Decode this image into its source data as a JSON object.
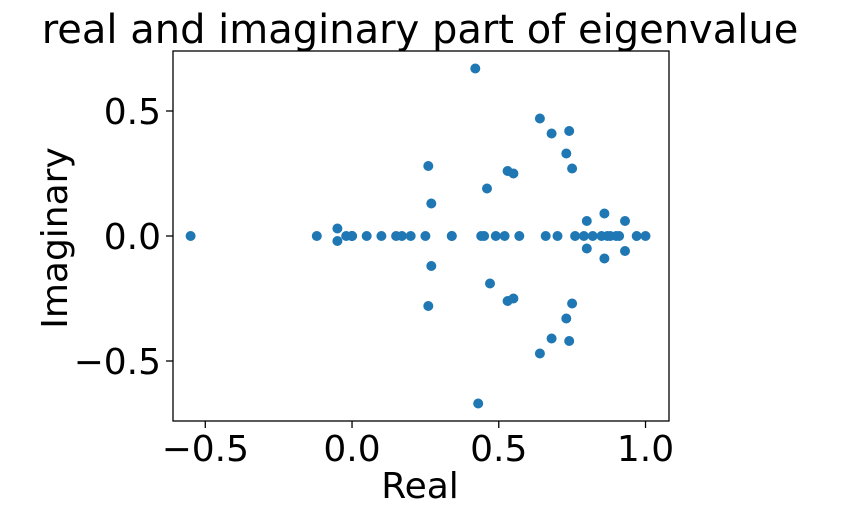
{
  "chart_data": {
    "type": "scatter",
    "title": "real and imaginary part of eigenvalue",
    "xlabel": "Real",
    "ylabel": "Imaginary",
    "xlim": [
      -0.61,
      1.08
    ],
    "ylim": [
      -0.74,
      0.74
    ],
    "xticks": [
      -0.5,
      0.0,
      0.5,
      1.0
    ],
    "xtick_labels": [
      "−0.5",
      "0.0",
      "0.5",
      "1.0"
    ],
    "yticks": [
      -0.5,
      0.0,
      0.5
    ],
    "ytick_labels": [
      "−0.5",
      "0.0",
      "0.5"
    ],
    "grid": false,
    "marker_color": "#1f77b4",
    "series": [
      {
        "x": [
          -0.55,
          -0.12,
          -0.05,
          -0.05,
          -0.02,
          0.0,
          0.0,
          0.0,
          0.05,
          0.1,
          0.15,
          0.17,
          0.2,
          0.25,
          0.26,
          0.26,
          0.27,
          0.27,
          0.34,
          0.34,
          0.42,
          0.43,
          0.44,
          0.45,
          0.46,
          0.47,
          0.49,
          0.52,
          0.53,
          0.53,
          0.55,
          0.55,
          0.57,
          0.64,
          0.64,
          0.66,
          0.68,
          0.68,
          0.7,
          0.73,
          0.73,
          0.74,
          0.74,
          0.75,
          0.75,
          0.76,
          0.79,
          0.8,
          0.8,
          0.82,
          0.85,
          0.86,
          0.86,
          0.87,
          0.88,
          0.9,
          0.91,
          0.93,
          0.93,
          0.97,
          1.0
        ],
        "y": [
          0.0,
          0.0,
          0.03,
          -0.02,
          0.0,
          0.0,
          0.0,
          0.0,
          0.0,
          0.0,
          0.0,
          0.0,
          0.0,
          0.0,
          0.28,
          -0.28,
          0.13,
          -0.12,
          0.0,
          0.0,
          0.67,
          -0.67,
          0.0,
          0.0,
          0.19,
          -0.19,
          0.0,
          0.0,
          0.26,
          -0.26,
          0.25,
          -0.25,
          0.0,
          0.47,
          -0.47,
          0.0,
          0.41,
          -0.41,
          0.0,
          0.33,
          -0.33,
          0.42,
          -0.42,
          0.27,
          -0.27,
          0.0,
          0.0,
          0.06,
          -0.05,
          0.0,
          0.0,
          0.09,
          -0.09,
          0.0,
          0.0,
          0.0,
          0.0,
          0.06,
          -0.06,
          0.0,
          0.0
        ]
      }
    ]
  }
}
